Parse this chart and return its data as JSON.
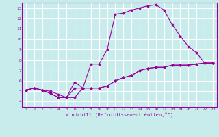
{
  "xlabel": "Windchill (Refroidissement éolien,°C)",
  "ylabel": "",
  "bg_color": "#c8ecec",
  "line_color": "#990099",
  "grid_color": "#ffffff",
  "xlim": [
    -0.5,
    23.5
  ],
  "ylim": [
    3.5,
    13.5
  ],
  "xticks": [
    0,
    1,
    2,
    3,
    4,
    5,
    6,
    7,
    8,
    9,
    10,
    11,
    12,
    13,
    14,
    15,
    16,
    17,
    18,
    19,
    20,
    21,
    22,
    23
  ],
  "yticks": [
    4,
    5,
    6,
    7,
    8,
    9,
    10,
    11,
    12,
    13
  ],
  "line1_x": [
    0,
    1,
    2,
    3,
    4,
    5,
    6,
    7,
    8,
    9,
    10,
    11,
    12,
    13,
    14,
    15,
    16,
    17,
    18,
    19,
    20,
    21,
    22,
    23
  ],
  "line1_y": [
    5.1,
    5.3,
    5.1,
    5.0,
    4.7,
    4.4,
    4.4,
    5.3,
    5.3,
    5.3,
    5.5,
    6.0,
    6.3,
    6.5,
    7.0,
    7.2,
    7.3,
    7.3,
    7.5,
    7.5,
    7.5,
    7.6,
    7.7,
    7.7
  ],
  "line2_x": [
    0,
    1,
    2,
    3,
    4,
    5,
    6,
    7,
    8,
    9,
    10,
    11,
    12,
    13,
    14,
    15,
    16,
    17,
    18,
    19,
    20,
    21,
    22,
    23
  ],
  "line2_y": [
    5.1,
    5.3,
    5.1,
    4.8,
    4.4,
    4.4,
    5.9,
    5.3,
    7.6,
    7.6,
    9.0,
    12.4,
    12.5,
    12.8,
    13.0,
    13.2,
    13.3,
    12.8,
    11.4,
    10.3,
    9.3,
    8.7,
    7.7,
    7.7
  ],
  "line3_x": [
    0,
    1,
    2,
    3,
    4,
    5,
    6,
    7,
    8,
    9,
    10,
    11,
    12,
    13,
    14,
    15,
    16,
    17,
    18,
    19,
    20,
    21,
    22,
    23
  ],
  "line3_y": [
    5.1,
    5.3,
    5.1,
    4.8,
    4.4,
    4.4,
    5.3,
    5.3,
    5.3,
    5.3,
    5.5,
    6.0,
    6.3,
    6.5,
    7.0,
    7.2,
    7.3,
    7.3,
    7.5,
    7.5,
    7.5,
    7.6,
    7.7,
    7.7
  ]
}
